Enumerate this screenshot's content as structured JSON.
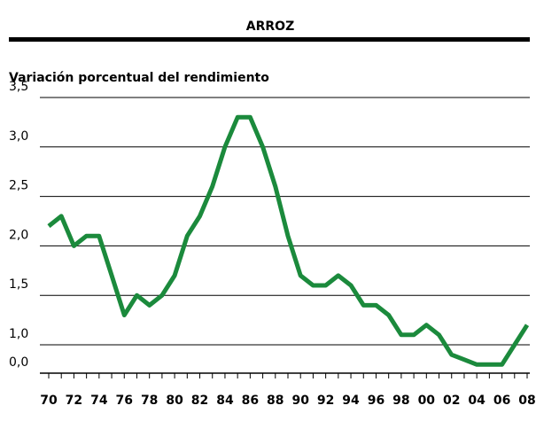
{
  "chart_data": {
    "type": "line",
    "title": "ARROZ",
    "subtitle": "Variación porcentual del rendimiento",
    "categories": [
      "70",
      null,
      "72",
      null,
      "74",
      null,
      "76",
      null,
      "78",
      null,
      "80",
      null,
      "82",
      null,
      "84",
      null,
      "86",
      null,
      "88",
      null,
      "90",
      null,
      "92",
      null,
      "94",
      null,
      "96",
      null,
      "98",
      null,
      "00",
      null,
      "02",
      null,
      "04",
      null,
      "06",
      null,
      "08"
    ],
    "series": [
      {
        "name": "Arroz",
        "color": "#1b8a3c",
        "values": [
          2.2,
          2.3,
          2.0,
          2.1,
          2.1,
          1.7,
          1.3,
          1.5,
          1.4,
          1.5,
          1.7,
          2.1,
          2.3,
          2.6,
          3.0,
          3.3,
          3.3,
          3.0,
          2.6,
          2.1,
          1.7,
          1.6,
          1.6,
          1.7,
          1.6,
          1.4,
          1.4,
          1.3,
          1.1,
          1.1,
          1.2,
          1.1,
          0.9,
          0.85,
          0.8,
          0.8,
          0.8,
          1.0,
          1.2
        ]
      }
    ],
    "ylim": [
      0,
      3.5
    ],
    "yticks": [
      {
        "value": 0,
        "label": "0,0"
      },
      {
        "value": 1,
        "label": "1,0"
      },
      {
        "value": 1.5,
        "label": "1,5"
      },
      {
        "value": 2,
        "label": "2,0"
      },
      {
        "value": 2.5,
        "label": "2,5"
      },
      {
        "value": 3,
        "label": "3,0"
      },
      {
        "value": 3.5,
        "label": "3,5"
      }
    ],
    "grid": true
  }
}
